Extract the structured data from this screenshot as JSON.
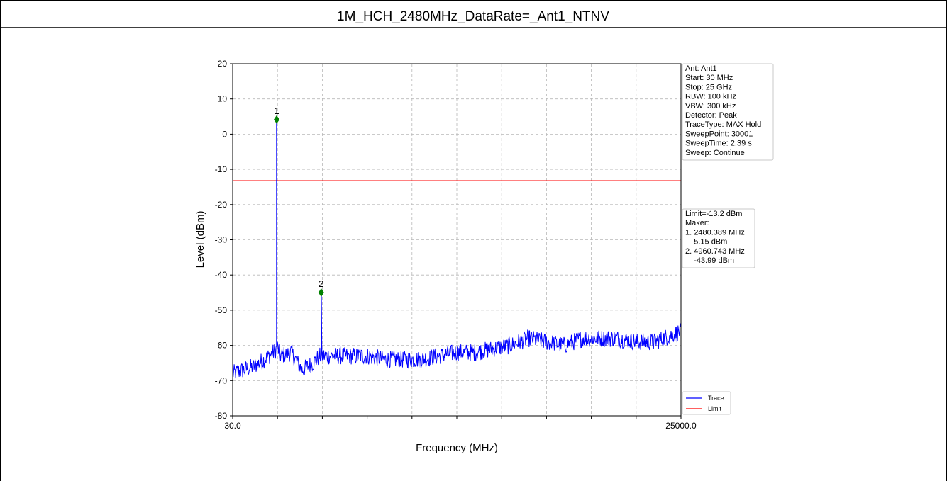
{
  "header": {
    "title": "1M_HCH_2480MHz_DataRate=_Ant1_NTNV"
  },
  "chart_data": {
    "type": "line",
    "xlabel": "Frequency (MHz)",
    "ylabel": "Level (dBm)",
    "xlim": [
      30.0,
      25000.0
    ],
    "ylim": [
      -80,
      20
    ],
    "x_tick_labels": [
      "30.0",
      "25000.0"
    ],
    "y_ticks": [
      20,
      10,
      0,
      -10,
      -20,
      -30,
      -40,
      -50,
      -60,
      -70,
      -80
    ],
    "grid": true,
    "limit_dbm": -13.2,
    "series": [
      {
        "name": "Trace",
        "color": "#0000ff",
        "x": [
          30,
          600,
          1200,
          1800,
          2300,
          2470,
          2480.389,
          2490,
          2700,
          3300,
          3900,
          4500,
          4900,
          4960.743,
          5000,
          5500,
          6500,
          7500,
          8500,
          9500,
          10500,
          11500,
          12500,
          13500,
          14500,
          15500,
          16500,
          17500,
          18500,
          19500,
          20500,
          21500,
          22500,
          23500,
          24500,
          25000
        ],
        "values": [
          -68,
          -67,
          -66,
          -64,
          -62,
          -61,
          5.15,
          -60,
          -63,
          -62,
          -67,
          -65,
          -63,
          -43.99,
          -63,
          -63,
          -63,
          -63,
          -64,
          -64,
          -64,
          -63,
          -62,
          -62,
          -61,
          -60,
          -58,
          -59,
          -60,
          -58,
          -58,
          -58,
          -59,
          -59,
          -57,
          -56
        ]
      },
      {
        "name": "Limit",
        "color": "#ff0000"
      }
    ],
    "markers": [
      {
        "label": "1",
        "x": 2480.389,
        "y": 5.15
      },
      {
        "label": "2",
        "x": 4960.743,
        "y": -43.99
      }
    ]
  },
  "info_box": {
    "lines": [
      "Ant: Ant1",
      "Start: 30 MHz",
      "Stop: 25 GHz",
      "RBW: 100 kHz",
      "VBW: 300 kHz",
      "Detector: Peak",
      "TraceType: MAX Hold",
      "SweepPoint: 30001",
      "SweepTime: 2.39 s",
      "Sweep: Continue"
    ]
  },
  "marker_box": {
    "lines": [
      "Limit=-13.2 dBm",
      "Maker:",
      "1. 2480.389 MHz",
      "    5.15 dBm",
      "2. 4960.743 MHz",
      "    -43.99 dBm"
    ]
  },
  "legend": {
    "trace": "Trace",
    "limit": "Limit"
  }
}
